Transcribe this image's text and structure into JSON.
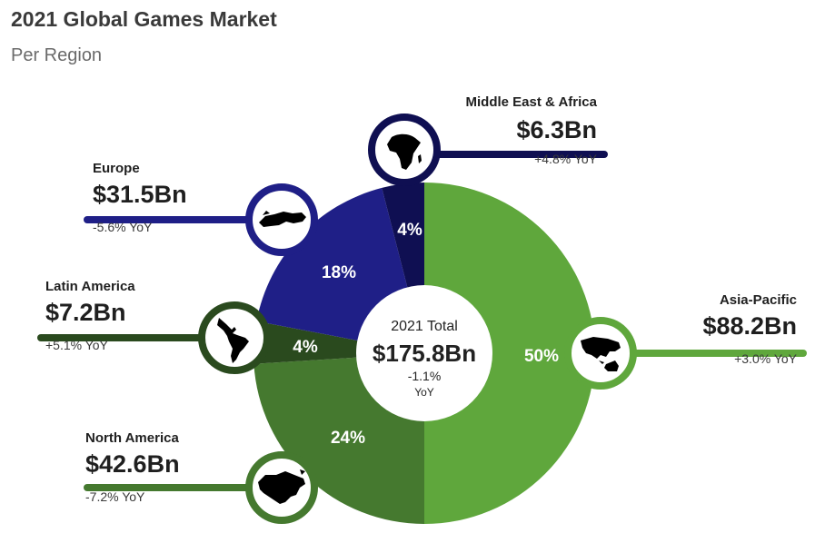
{
  "title": "2021 Global Games Market",
  "subtitle": "Per Region",
  "center": {
    "label": "2021 Total",
    "value": "$175.8Bn",
    "yoy": "-1.1%",
    "yoy_label": "YoY"
  },
  "regions": {
    "middle_east_africa": {
      "name": "Middle East & Africa",
      "value": "$6.3Bn",
      "yoy": "+4.8% YoY",
      "pct": "4%"
    },
    "europe": {
      "name": "Europe",
      "value": "$31.5Bn",
      "yoy": "-5.6% YoY",
      "pct": "18%"
    },
    "latin_america": {
      "name": "Latin America",
      "value": "$7.2Bn",
      "yoy": "+5.1% YoY",
      "pct": "4%"
    },
    "north_america": {
      "name": "North America",
      "value": "$42.6Bn",
      "yoy": "-7.2% YoY",
      "pct": "24%"
    },
    "asia_pacific": {
      "name": "Asia-Pacific",
      "value": "$88.2Bn",
      "yoy": "+3.0% YoY",
      "pct": "50%"
    }
  },
  "colors": {
    "asia_pacific": "#5fa73c",
    "north_america": "#45792f",
    "latin_america": "#2a4a1e",
    "europe": "#1f1f87",
    "middle_east_africa": "#0f0f52"
  },
  "icons": {
    "asia_pacific": "asia-pacific-map-icon",
    "north_america": "north-america-map-icon",
    "latin_america": "latin-america-map-icon",
    "europe": "europe-map-icon",
    "middle_east_africa": "africa-map-icon"
  },
  "chart_data": {
    "type": "pie",
    "title": "2021 Global Games Market",
    "subtitle": "Per Region",
    "categories": [
      "Asia-Pacific",
      "North America",
      "Latin America",
      "Europe",
      "Middle East & Africa"
    ],
    "values": [
      88.2,
      42.6,
      7.2,
      31.5,
      6.3
    ],
    "percentages": [
      50,
      24,
      4,
      18,
      4
    ],
    "yoy": [
      "+3.0%",
      "-7.2%",
      "+5.1%",
      "-5.6%",
      "+4.8%"
    ],
    "total": 175.8,
    "total_yoy": "-1.1%",
    "unit": "$Bn"
  }
}
